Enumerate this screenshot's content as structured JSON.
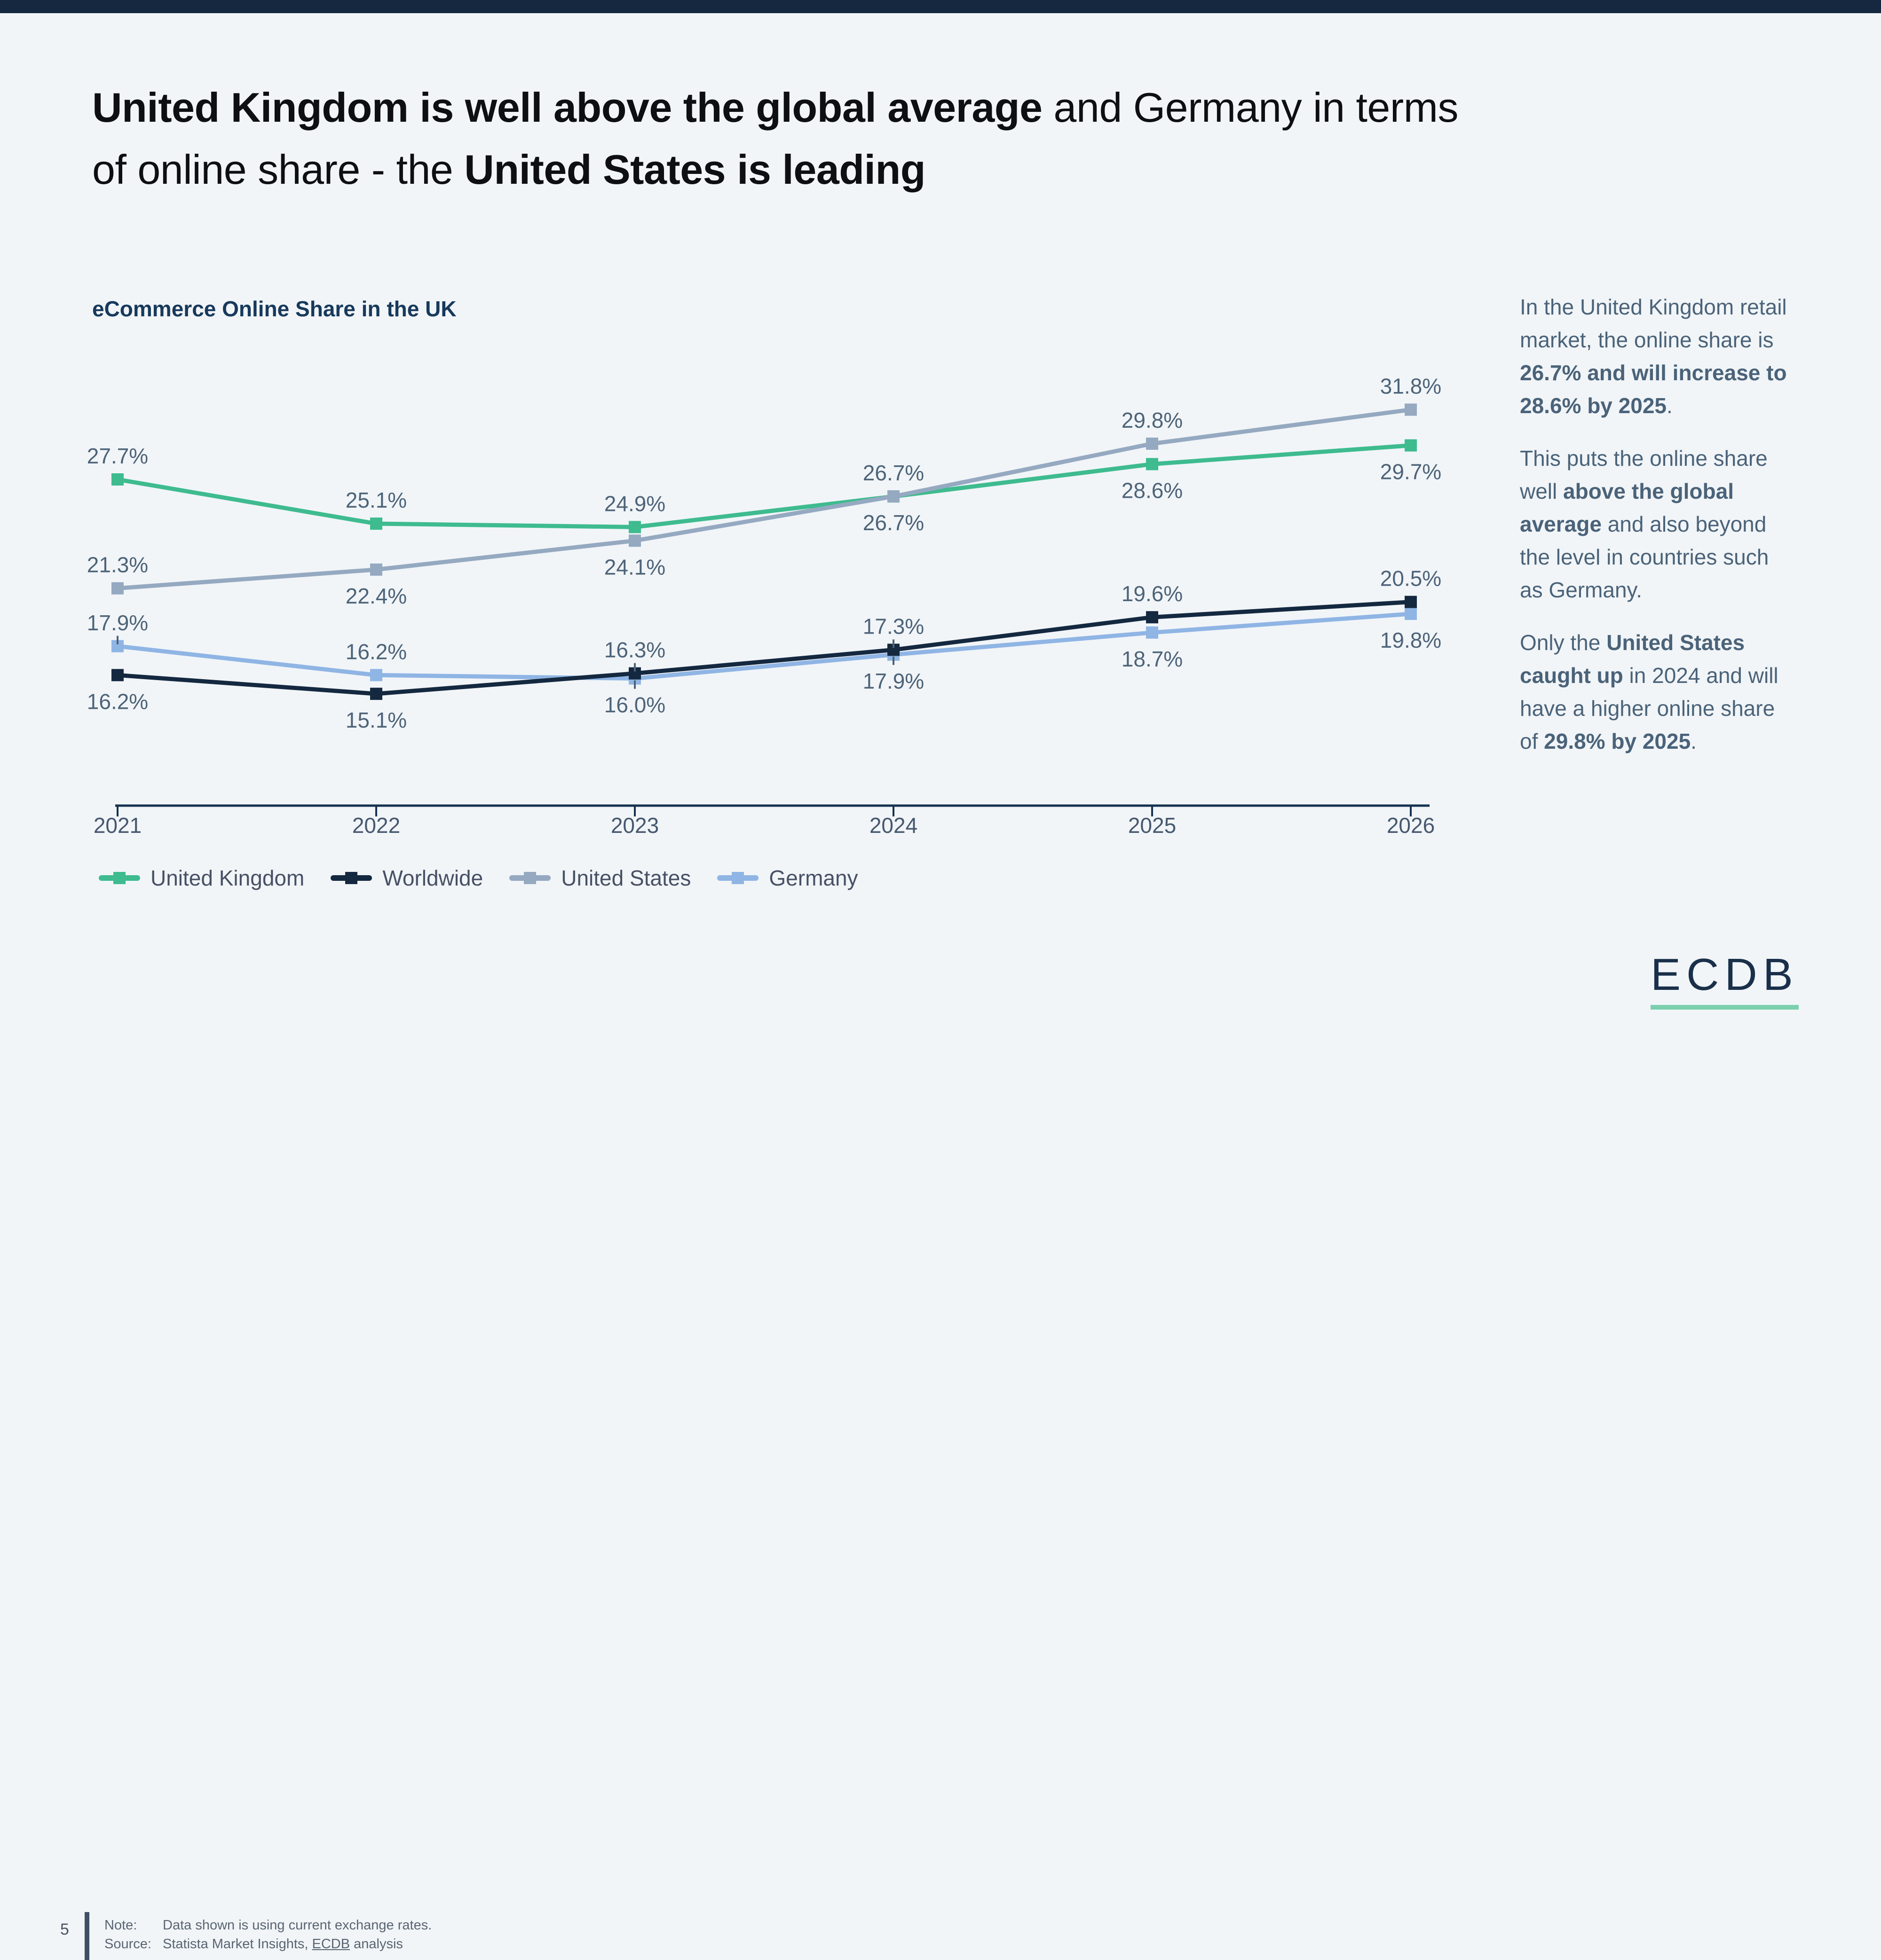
{
  "page": {
    "background": "#f2f5f8",
    "topbar_color": "#15283f"
  },
  "title": {
    "lines": [
      [
        {
          "text": "United Kingdom is well above the global average",
          "bold": true
        },
        {
          "text": " and Germany in terms",
          "bold": false
        }
      ],
      [
        {
          "text": "of online share - the ",
          "bold": false
        },
        {
          "text": "United States is leading",
          "bold": true
        }
      ]
    ]
  },
  "chart": {
    "title": "eCommerce Online Share in the UK"
  },
  "chart_data": {
    "type": "line",
    "title": "eCommerce Online Share in the UK",
    "x": [
      2021,
      2022,
      2023,
      2024,
      2025,
      2026
    ],
    "unit": "%",
    "series": [
      {
        "name": "United Kingdom",
        "color": "#3ebc8f",
        "values": [
          27.7,
          25.1,
          24.9,
          26.7,
          28.6,
          29.7
        ],
        "label_side": [
          "above",
          "above",
          "above",
          "below",
          "below",
          "below"
        ]
      },
      {
        "name": "Worldwide",
        "color": "#14293f",
        "values": [
          16.2,
          15.1,
          16.3,
          17.3,
          19.6,
          20.5
        ],
        "label_side": [
          "below",
          "below",
          "above",
          "above",
          "above",
          "above"
        ]
      },
      {
        "name": "United States",
        "color": "#95a9c1",
        "values": [
          21.3,
          22.4,
          24.1,
          26.7,
          29.8,
          31.8
        ],
        "label_side": [
          "above",
          "below",
          "below",
          "above",
          "above",
          "above"
        ]
      },
      {
        "name": "Germany",
        "color": "#8fb5e4",
        "values": [
          17.9,
          16.2,
          16.0,
          17.9,
          18.7,
          19.8
        ],
        "label_side": [
          "above",
          "above",
          "below",
          "below",
          "below",
          "below"
        ]
      }
    ],
    "xlabel": "",
    "ylabel": "",
    "ylim": [
      14,
      33
    ],
    "grid": false,
    "legend_position": "bottom",
    "overlap_nudges": [
      {
        "series": "Worldwide",
        "x": 2024,
        "dy": -14
      },
      {
        "series": "Germany",
        "x": 2024,
        "dy": 18
      }
    ],
    "label_leaders": [
      {
        "series": "Germany",
        "x": 2021
      },
      {
        "series": "Worldwide",
        "x": 2023
      },
      {
        "series": "Germany",
        "x": 2023
      },
      {
        "series": "Worldwide",
        "x": 2024
      },
      {
        "series": "Germany",
        "x": 2024
      }
    ]
  },
  "sidebar": {
    "paragraphs": [
      [
        {
          "text": "In the United Kingdom retail market, the online share is ",
          "bold": false
        },
        {
          "text": "26.7% and will increase to 28.6% by 2025",
          "bold": true
        },
        {
          "text": ".",
          "bold": false
        }
      ],
      [
        {
          "text": "This puts the online share well ",
          "bold": false
        },
        {
          "text": "above the global average",
          "bold": true
        },
        {
          "text": " and also beyond the level in countries such as Germany.",
          "bold": false
        }
      ],
      [
        {
          "text": "Only the ",
          "bold": false
        },
        {
          "text": "United States caught up",
          "bold": true
        },
        {
          "text": " in 2024 and will have a higher online share of ",
          "bold": false
        },
        {
          "text": "29.8% by 2025",
          "bold": true
        },
        {
          "text": ".",
          "bold": false
        }
      ]
    ]
  },
  "footer": {
    "page_number": "5",
    "note_label": "Note:",
    "note_text": "Data shown is using current exchange rates.",
    "source_label": "Source:",
    "source_prefix": "Statista Market Insights, ",
    "source_link": "ECDB",
    "source_suffix": " analysis"
  },
  "logo": {
    "text": "ECDB",
    "underline_color": "#7ccfad"
  }
}
